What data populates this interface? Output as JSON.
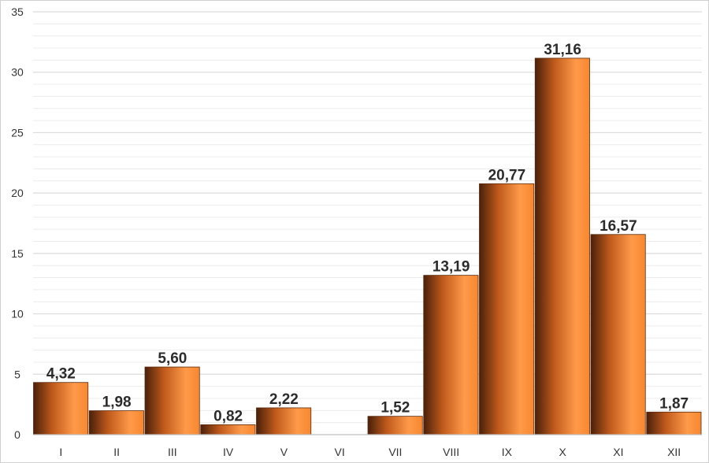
{
  "chart_data": {
    "type": "bar",
    "categories": [
      "I",
      "II",
      "III",
      "IV",
      "V",
      "VI",
      "VII",
      "VIII",
      "IX",
      "X",
      "XI",
      "XII"
    ],
    "values": [
      4.32,
      1.98,
      5.6,
      0.82,
      2.22,
      0,
      1.52,
      13.19,
      20.77,
      31.16,
      16.57,
      1.87
    ],
    "data_labels": [
      "4,32",
      "1,98",
      "5,60",
      "0,82",
      "2,22",
      "",
      "1,52",
      "13,19",
      "20,77",
      "31,16",
      "16,57",
      "1,87"
    ],
    "y_ticks": [
      "0",
      "5",
      "10",
      "15",
      "20",
      "25",
      "30",
      "35"
    ],
    "ylim": [
      0,
      35
    ],
    "grid": true,
    "minor_grid": true,
    "legend": "none",
    "colors": {
      "bar_dark": "#4a200a",
      "bar_mid": "#c05a1c",
      "bar_light": "#ff9a4a",
      "grid": "#dcdcdc",
      "minor_grid": "#ececec"
    }
  }
}
